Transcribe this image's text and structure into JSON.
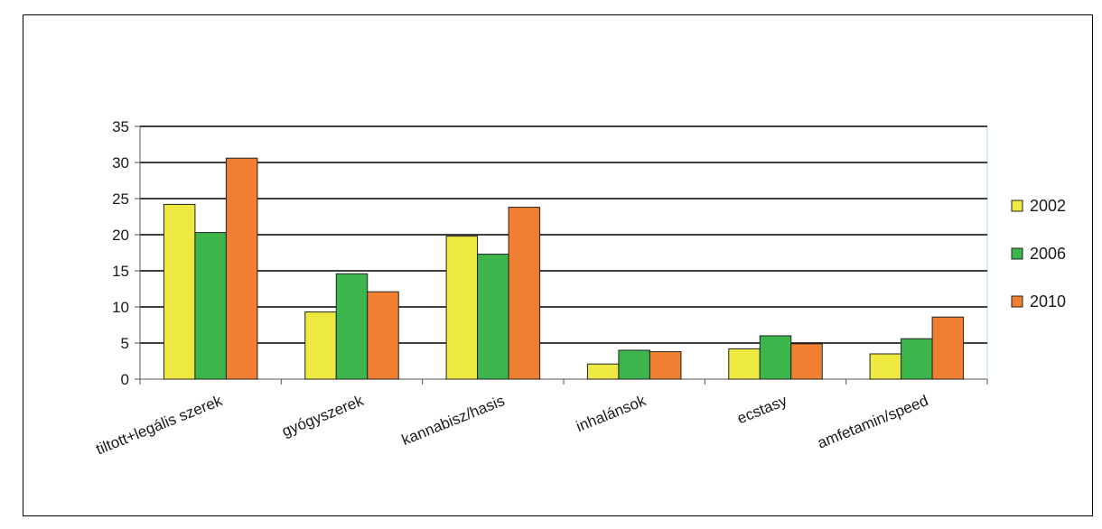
{
  "chart_data": {
    "type": "bar",
    "categories": [
      "tiltott+legális szerek",
      "gyógyszerek",
      "kannabisz/hasis",
      "inhalánsok",
      "ecstasy",
      "amfetamin/speed"
    ],
    "series": [
      {
        "name": "2002",
        "color": "#ede940",
        "values": [
          24.2,
          9.3,
          19.8,
          2.1,
          4.2,
          3.5
        ]
      },
      {
        "name": "2006",
        "color": "#3cb54a",
        "values": [
          20.3,
          14.6,
          17.3,
          4.0,
          6.0,
          5.6
        ]
      },
      {
        "name": "2010",
        "color": "#f07f32",
        "values": [
          30.6,
          12.1,
          23.8,
          3.8,
          4.9,
          8.6
        ]
      }
    ],
    "yticks": [
      "0",
      "5",
      "10",
      "15",
      "20",
      "25",
      "30",
      "35"
    ],
    "ylim": [
      0,
      35
    ],
    "grid": true,
    "legend_position": "right",
    "title": "",
    "xlabel": "",
    "ylabel": ""
  }
}
